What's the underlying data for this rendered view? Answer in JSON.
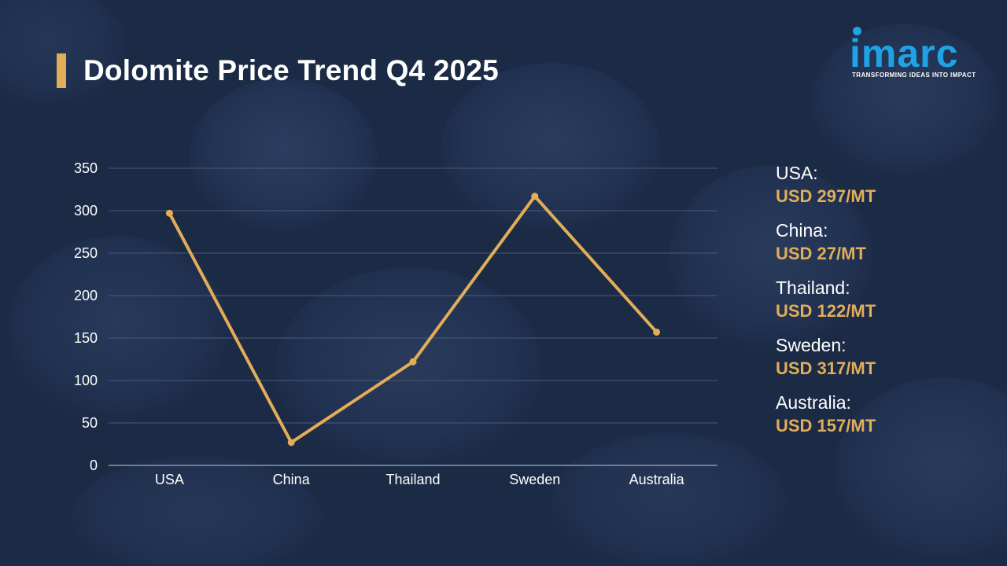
{
  "title": "Dolomite Price Trend Q4 2025",
  "logo": {
    "word": "imarc",
    "tagline": "TRANSFORMING IDEAS INTO IMPACT"
  },
  "colors": {
    "accent": "#e2ad58",
    "background": "#1b2a45",
    "logo": "#1fa3e6",
    "grid": "#4a5a78"
  },
  "chart_data": {
    "type": "line",
    "title": "Dolomite Price Trend Q4 2025",
    "categories": [
      "USA",
      "China",
      "Thailand",
      "Sweden",
      "Australia"
    ],
    "series": [
      {
        "values": [
          297,
          27,
          122,
          317,
          157
        ]
      }
    ],
    "ylim": [
      0,
      350
    ],
    "yticks": [
      0,
      50,
      100,
      150,
      200,
      250,
      300,
      350
    ],
    "grid": true,
    "legend": "right"
  },
  "legend": [
    {
      "country": "USA:",
      "value": "USD 297/MT"
    },
    {
      "country": "China:",
      "value": "USD 27/MT"
    },
    {
      "country": "Thailand:",
      "value": "USD 122/MT"
    },
    {
      "country": "Sweden:",
      "value": "USD 317/MT"
    },
    {
      "country": "Australia:",
      "value": "USD 157/MT"
    }
  ]
}
